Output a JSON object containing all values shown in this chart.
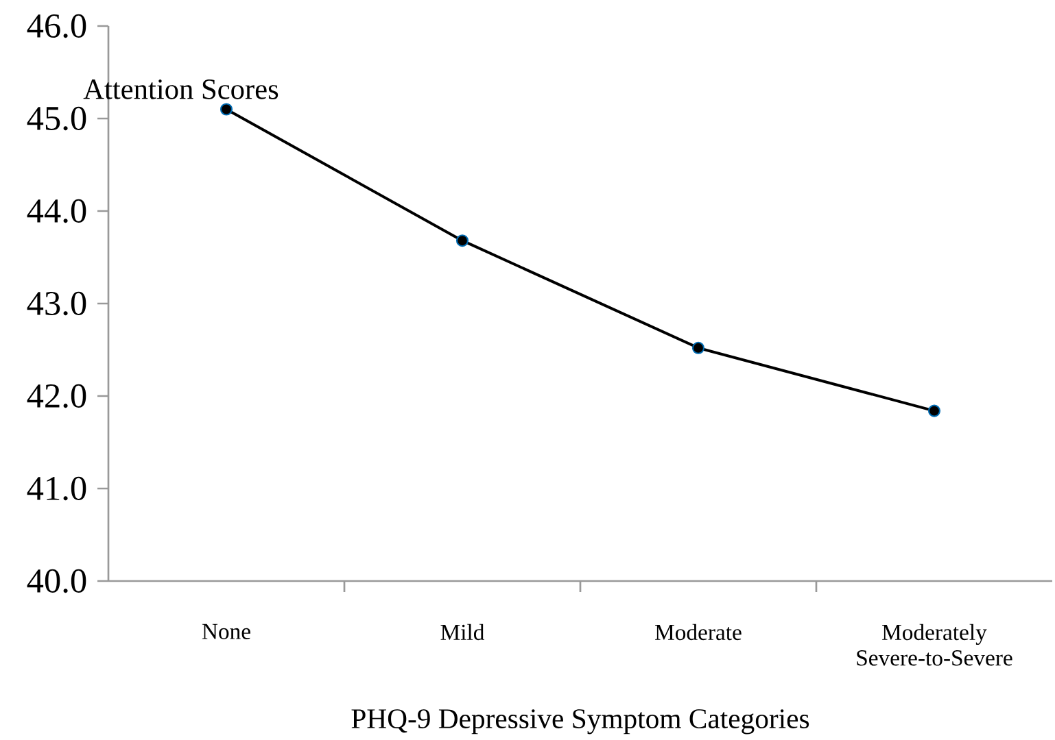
{
  "chart_data": {
    "type": "line",
    "xlabel": "PHQ-9 Depressive Symptom Categories",
    "ylabel": "Attention Scores",
    "categories": [
      "None",
      "Mild",
      "Moderate",
      "Moderately Severe-to-Severe"
    ],
    "series": [
      {
        "color": "#000000",
        "values": [
          45.1,
          43.68,
          42.52,
          41.84
        ]
      }
    ],
    "ylim": [
      40,
      46
    ],
    "yticks": [
      {
        "value": 40,
        "label": "40.0"
      },
      {
        "value": 41,
        "label": "41.0"
      },
      {
        "value": 42,
        "label": "42.0"
      },
      {
        "value": 43,
        "label": "43.0"
      },
      {
        "value": 44,
        "label": "44.0"
      },
      {
        "value": 45,
        "label": "45.0"
      },
      {
        "value": 46,
        "label": "46.0"
      }
    ],
    "grid": false,
    "marker": "circle",
    "line_style": "solid"
  }
}
